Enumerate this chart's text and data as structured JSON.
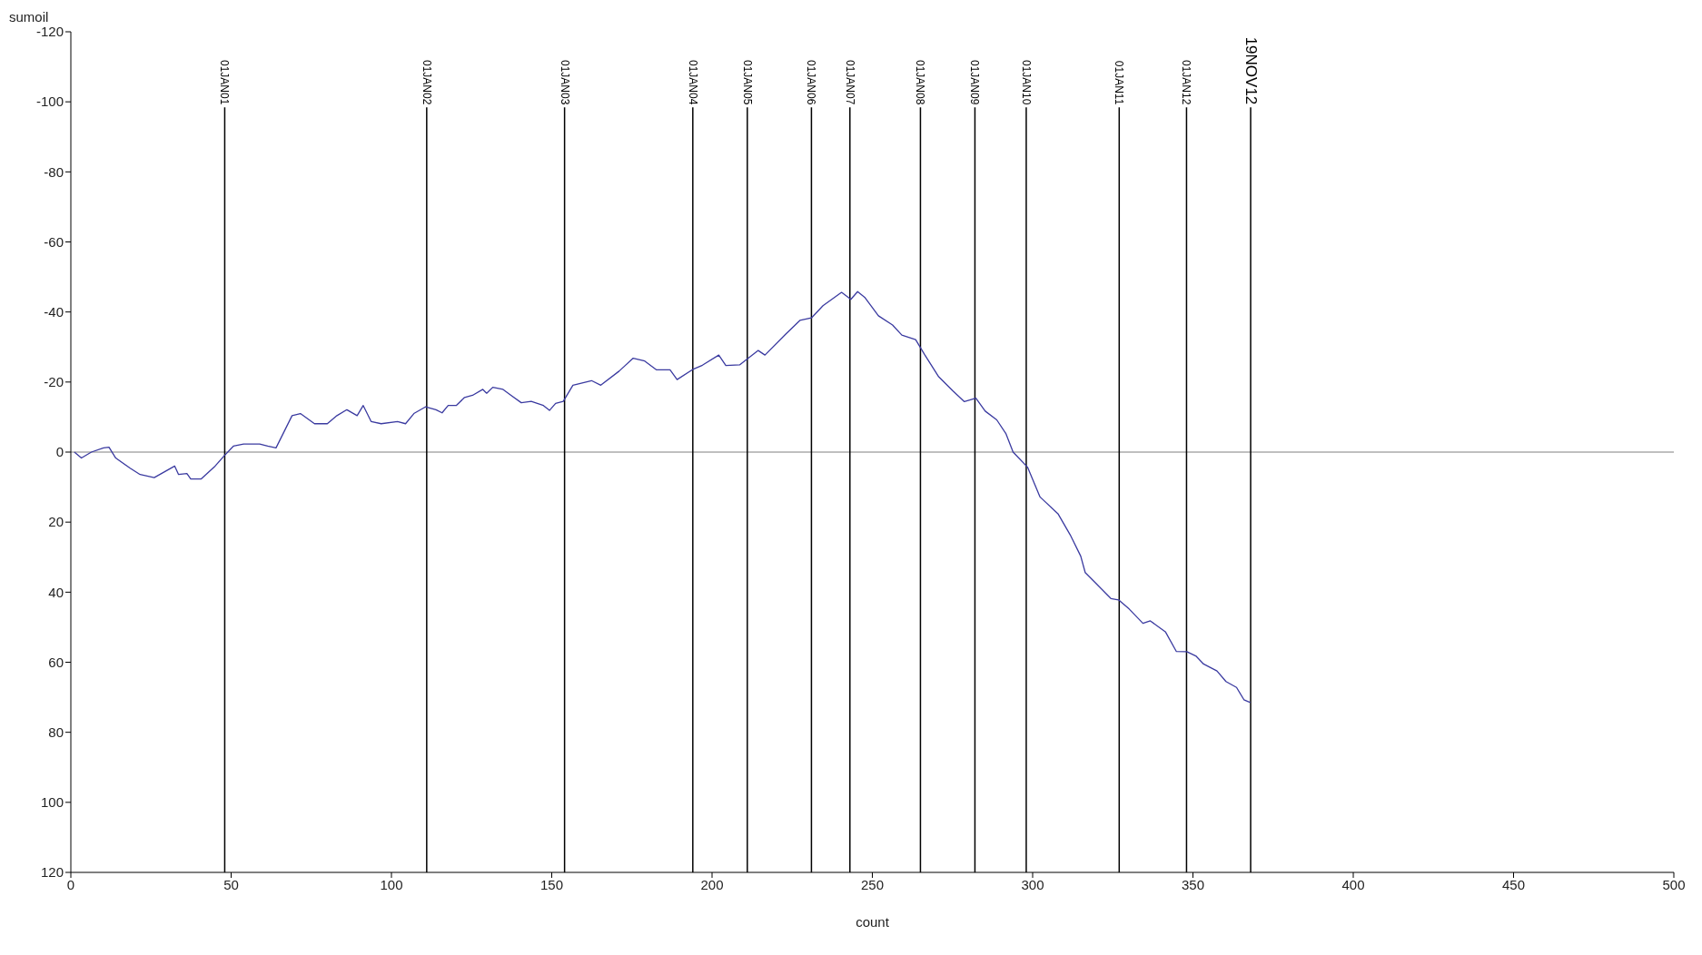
{
  "chart_data": {
    "type": "line",
    "xlabel": "count",
    "ylabel": "sumoil",
    "xlim": [
      0,
      500
    ],
    "xticks": [
      0,
      50,
      100,
      150,
      200,
      250,
      300,
      350,
      400,
      450,
      500
    ],
    "ylim": [
      120,
      -120
    ],
    "yticks": [
      -120,
      -100,
      -80,
      -60,
      -40,
      -20,
      0,
      20,
      40,
      60,
      80,
      100,
      120
    ],
    "marker": "none",
    "line_style": "solid",
    "series": [
      {
        "color": "#3a3aa0",
        "x": [
          1.1,
          3.3,
          6.4,
          10.2,
          11.9,
          14,
          18.5,
          21.6,
          26,
          32.4,
          33.6,
          36.2,
          37.4,
          40.6,
          45,
          47.7,
          50.7,
          53.9,
          58.9,
          61.4,
          64,
          66.5,
          69,
          71.6,
          76,
          80,
          83,
          86.1,
          89.3,
          91.2,
          93.7,
          96.8,
          101.9,
          104.4,
          107,
          110.6,
          113.9,
          115.8,
          117.7,
          120.2,
          122.8,
          125.3,
          128.5,
          129.7,
          131.6,
          134.8,
          137.3,
          140.5,
          143.6,
          147.4,
          149.3,
          151.2,
          153.6,
          156.6,
          162.4,
          165.3,
          171,
          175.4,
          179,
          182.6,
          186.9,
          189.1,
          194.2,
          197,
          202.1,
          204.3,
          208.6,
          214.4,
          216.5,
          223,
          227.4,
          231,
          234.6,
          240.4,
          243.3,
          245.4,
          247.6,
          251.9,
          256.3,
          259.2,
          263.5,
          266.4,
          270.7,
          275.1,
          278.7,
          282.3,
          285.2,
          288.8,
          291.7,
          293.9,
          298.4,
          302.3,
          307.9,
          311.7,
          315,
          316.4,
          318.8,
          324.4,
          326.8,
          330.1,
          334.4,
          336.7,
          341.4,
          344.8,
          348.1,
          350.9,
          353.3,
          357.5,
          360.3,
          363.6,
          365.9,
          367.9
        ],
        "values": [
          0,
          1.7,
          0,
          -1.2,
          -1.4,
          1.7,
          4.6,
          6.4,
          7.3,
          4,
          6.4,
          6.1,
          7.7,
          7.7,
          4,
          1.2,
          -1.7,
          -2.3,
          -2.3,
          -1.7,
          -1.2,
          -5.8,
          -10.4,
          -11,
          -8.1,
          -8.1,
          -10.4,
          -12.1,
          -10.4,
          -13.3,
          -8.7,
          -8.1,
          -8.7,
          -8.1,
          -11,
          -12.9,
          -12.1,
          -11.2,
          -13.3,
          -13.3,
          -15.6,
          -16.2,
          -17.9,
          -16.8,
          -18.5,
          -17.9,
          -16.2,
          -14.1,
          -14.5,
          -13.3,
          -11.9,
          -13.9,
          -14.5,
          -19.1,
          -20.4,
          -19.1,
          -23.1,
          -26.8,
          -26,
          -23.5,
          -23.5,
          -20.7,
          -23.7,
          -24.8,
          -27.7,
          -24.7,
          -24.9,
          -29,
          -27.7,
          -33.7,
          -37.6,
          -38.3,
          -41.8,
          -45.6,
          -43.6,
          -45.8,
          -44.2,
          -38.9,
          -36.3,
          -33.4,
          -32.1,
          -27.7,
          -21.5,
          -17.5,
          -14.4,
          -15.4,
          -11.7,
          -9.2,
          -5.2,
          0,
          4.3,
          12.8,
          17.6,
          23.6,
          29.7,
          34.4,
          36.6,
          41.8,
          42.2,
          44.8,
          48.9,
          48.2,
          51.3,
          56.9,
          57,
          58.2,
          60.5,
          62.5,
          65.5,
          67.2,
          70.7,
          71.5
        ]
      }
    ],
    "ref_lines": [
      {
        "axis": "y",
        "value": 0,
        "color": "#808080"
      },
      {
        "axis": "x",
        "value": 48,
        "label": "01JAN01",
        "color": "#000000"
      },
      {
        "axis": "x",
        "value": 111,
        "label": "01JAN02",
        "color": "#000000"
      },
      {
        "axis": "x",
        "value": 154,
        "label": "01JAN03",
        "color": "#000000"
      },
      {
        "axis": "x",
        "value": 194,
        "label": "01JAN04",
        "color": "#000000"
      },
      {
        "axis": "x",
        "value": 211,
        "label": "01JAN05",
        "color": "#000000"
      },
      {
        "axis": "x",
        "value": 231,
        "label": "01JAN06",
        "color": "#000000"
      },
      {
        "axis": "x",
        "value": 243,
        "label": "01JAN07",
        "color": "#000000"
      },
      {
        "axis": "x",
        "value": 265,
        "label": "01JAN08",
        "color": "#000000"
      },
      {
        "axis": "x",
        "value": 282,
        "label": "01JAN09",
        "color": "#000000"
      },
      {
        "axis": "x",
        "value": 298,
        "label": "01JAN10",
        "color": "#000000"
      },
      {
        "axis": "x",
        "value": 327,
        "label": "01JAN11",
        "color": "#000000"
      },
      {
        "axis": "x",
        "value": 348,
        "label": "01JAN12",
        "color": "#000000"
      },
      {
        "axis": "x",
        "value": 368,
        "label": "19NOV12",
        "color": "#000000"
      }
    ]
  }
}
